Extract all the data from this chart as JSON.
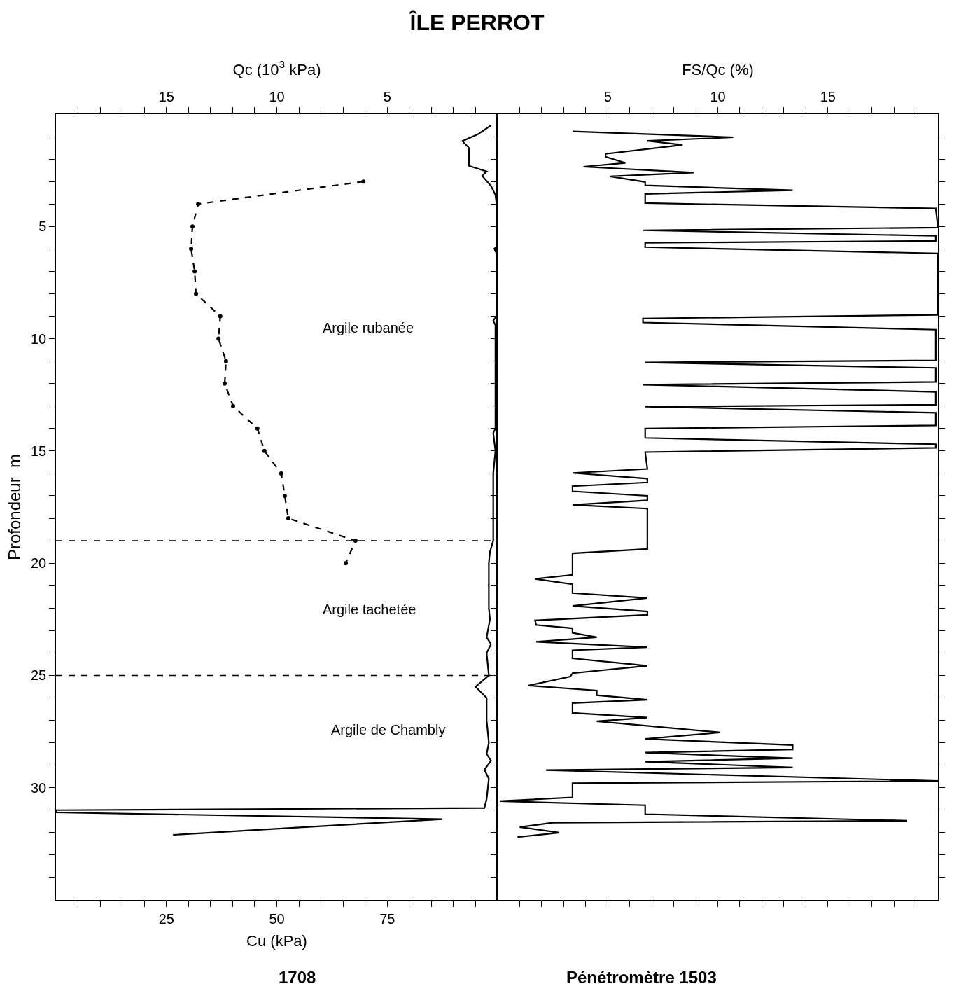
{
  "chart_data": [
    {
      "type": "line",
      "title": "ÎLE PERROT",
      "xlabel": "Cu (kPa)",
      "x2label": "Qc (10$^{3}$ kPa)",
      "ylabel": "Profondeur  m",
      "xlim": [
        0,
        100
      ],
      "xticks": [
        {
          "value": 5,
          "label": null
        },
        {
          "value": 10,
          "label": null
        },
        {
          "value": 15,
          "label": null
        },
        {
          "value": 20,
          "label": null
        },
        25,
        {
          "value": 30,
          "label": null
        },
        {
          "value": 35,
          "label": null
        },
        {
          "value": 40,
          "label": null
        },
        {
          "value": 45,
          "label": null
        },
        50,
        {
          "value": 55,
          "label": null
        },
        {
          "value": 60,
          "label": null
        },
        {
          "value": 65,
          "label": null
        },
        {
          "value": 70,
          "label": null
        },
        75,
        {
          "value": 80,
          "label": null
        },
        {
          "value": 85,
          "label": null
        },
        {
          "value": 90,
          "label": null
        },
        {
          "value": 95,
          "label": null
        }
      ],
      "x2lim": [
        20,
        0
      ],
      "x2ticks": [
        {
          "value": 1,
          "label": null
        },
        {
          "value": 2,
          "label": null
        },
        {
          "value": 3,
          "label": null
        },
        {
          "value": 4,
          "label": null
        },
        5,
        {
          "value": 6,
          "label": null
        },
        {
          "value": 7,
          "label": null
        },
        {
          "value": 8,
          "label": null
        },
        {
          "value": 9,
          "label": null
        },
        10,
        {
          "value": 11,
          "label": null
        },
        {
          "value": 12,
          "label": null
        },
        {
          "value": 13,
          "label": null
        },
        {
          "value": 14,
          "label": null
        },
        15,
        {
          "value": 16,
          "label": null
        },
        {
          "value": 17,
          "label": null
        },
        {
          "value": 18,
          "label": null
        },
        {
          "value": 19,
          "label": null
        }
      ],
      "ylim": [
        35,
        0
      ],
      "yticks": [
        {
          "value": 1,
          "label": null
        },
        {
          "value": 2,
          "label": null
        },
        {
          "value": 3,
          "label": null
        },
        {
          "value": 4,
          "label": null
        },
        5,
        {
          "value": 6,
          "label": null
        },
        {
          "value": 7,
          "label": null
        },
        {
          "value": 8,
          "label": null
        },
        {
          "value": 9,
          "label": null
        },
        10,
        {
          "value": 11,
          "label": null
        },
        {
          "value": 12,
          "label": null
        },
        {
          "value": 13,
          "label": null
        },
        {
          "value": 14,
          "label": null
        },
        15,
        {
          "value": 16,
          "label": null
        },
        {
          "value": 17,
          "label": null
        },
        {
          "value": 18,
          "label": null
        },
        {
          "value": 19,
          "label": null
        },
        20,
        {
          "value": 21,
          "label": null
        },
        {
          "value": 22,
          "label": null
        },
        {
          "value": 23,
          "label": null
        },
        {
          "value": 24,
          "label": null
        },
        25,
        {
          "value": 26,
          "label": null
        },
        {
          "value": 27,
          "label": null
        },
        {
          "value": 28,
          "label": null
        },
        {
          "value": 29,
          "label": null
        },
        30,
        {
          "value": 31,
          "label": null
        },
        {
          "value": 32,
          "label": null
        },
        {
          "value": 33,
          "label": null
        },
        {
          "value": 34,
          "label": null
        }
      ],
      "series": [
        {
          "color": "#000000",
          "line_style": "dashed",
          "marker": "circle",
          "x": [
            69.6,
            32.2,
            30.9,
            30.6,
            31.4,
            31.7,
            37.2,
            36.8,
            38.5,
            38.2,
            40.1,
            45.6,
            47.2,
            51,
            51.8,
            52.6,
            67.8,
            65.6
          ],
          "values": [
            3,
            4,
            5,
            6,
            7,
            8,
            9,
            10,
            11,
            12,
            13,
            14,
            15,
            16,
            17,
            18,
            19,
            20
          ]
        },
        {
          "color": "#000000",
          "axis": "x2",
          "line_style": "solid",
          "x": [
            0.3,
            0.9,
            1.6,
            1.3,
            1.3,
            0.5,
            0.7,
            0.3,
            0.1,
            0.05,
            0.05,
            0.15,
            0.05,
            0.05,
            0.2,
            0.1,
            0.1,
            0.2,
            0.15,
            0.1,
            0.2,
            0.2,
            0.2,
            0.35,
            0.4,
            0.4,
            0.35,
            0.5,
            0.3,
            0.5,
            0.4,
            1.0,
            0.5,
            0.5,
            0.4,
            0.5,
            0.3,
            0.6,
            0.4,
            0.5,
            0.6,
            20,
            20,
            2.5,
            8.7,
            14.7
          ],
          "values": [
            0.5,
            0.9,
            1.2,
            1.5,
            2.3,
            2.55,
            2.75,
            3.2,
            3.6,
            4.0,
            5.9,
            6.0,
            6.2,
            9.0,
            9.2,
            9.4,
            14.0,
            14.2,
            14.6,
            15,
            16,
            17,
            19,
            19.5,
            20,
            22,
            22.5,
            23.3,
            23.6,
            24,
            25,
            25.5,
            26,
            27,
            28,
            28.5,
            28.8,
            29.2,
            29.6,
            30.5,
            30.9,
            31.0,
            31.1,
            31.4,
            31.75,
            32.1
          ]
        }
      ],
      "ref_lines": [
        {
          "axis": "y",
          "value": 19,
          "line_style": "dashed"
        },
        {
          "axis": "y",
          "value": 25,
          "line_style": "dashed"
        }
      ],
      "annotations": [
        "Argile rubanée",
        "Argile tachetée",
        "Argile de Chambly",
        "1708"
      ]
    },
    {
      "type": "line",
      "xlabel": "FS/Qc (%)",
      "tick_labels": "x",
      "xlim": [
        0,
        20
      ],
      "xticks": [
        {
          "value": 1,
          "label": null
        },
        {
          "value": 2,
          "label": null
        },
        {
          "value": 3,
          "label": null
        },
        {
          "value": 4,
          "label": null
        },
        5,
        {
          "value": 6,
          "label": null
        },
        {
          "value": 7,
          "label": null
        },
        {
          "value": 8,
          "label": null
        },
        {
          "value": 9,
          "label": null
        },
        10,
        {
          "value": 11,
          "label": null
        },
        {
          "value": 12,
          "label": null
        },
        {
          "value": 13,
          "label": null
        },
        {
          "value": 14,
          "label": null
        },
        15,
        {
          "value": 16,
          "label": null
        },
        {
          "value": 17,
          "label": null
        },
        {
          "value": 18,
          "label": null
        },
        {
          "value": 19,
          "label": null
        }
      ],
      "ylim": [
        35,
        0
      ],
      "yticks": [
        {
          "value": 1,
          "label": null
        },
        {
          "value": 2,
          "label": null
        },
        {
          "value": 3,
          "label": null
        },
        {
          "value": 4,
          "label": null
        },
        5,
        {
          "value": 6,
          "label": null
        },
        {
          "value": 7,
          "label": null
        },
        {
          "value": 8,
          "label": null
        },
        {
          "value": 9,
          "label": null
        },
        10,
        {
          "value": 11,
          "label": null
        },
        {
          "value": 12,
          "label": null
        },
        {
          "value": 13,
          "label": null
        },
        {
          "value": 14,
          "label": null
        },
        15,
        {
          "value": 16,
          "label": null
        },
        {
          "value": 17,
          "label": null
        },
        {
          "value": 18,
          "label": null
        },
        {
          "value": 19,
          "label": null
        },
        20,
        {
          "value": 21,
          "label": null
        },
        {
          "value": 22,
          "label": null
        },
        {
          "value": 23,
          "label": null
        },
        {
          "value": 24,
          "label": null
        },
        25,
        {
          "value": 26,
          "label": null
        },
        {
          "value": 27,
          "label": null
        },
        {
          "value": 28,
          "label": null
        },
        {
          "value": 29,
          "label": null
        },
        30,
        {
          "value": 31,
          "label": null
        },
        {
          "value": 32,
          "label": null
        },
        {
          "value": 33,
          "label": null
        },
        {
          "value": 34,
          "label": null
        }
      ],
      "series": [
        {
          "color": "#000000",
          "line_style": "solid",
          "x": [
            3.4,
            10.7,
            6.8,
            8.4,
            4.9,
            4.9,
            5.8,
            3.9,
            8.9,
            5.1,
            6.7,
            6.7,
            13.4,
            6.7,
            6.7,
            19.9,
            20,
            6.6,
            19.9,
            19.9,
            6.7,
            6.7,
            20,
            20,
            6.6,
            6.6,
            19.9,
            19.9,
            6.7,
            19.9,
            19.9,
            6.6,
            19.9,
            19.9,
            6.7,
            19.9,
            19.9,
            6.7,
            6.7,
            19.9,
            19.9,
            6.7,
            6.8,
            3.4,
            6.8,
            6.8,
            3.4,
            3.4,
            6.8,
            6.8,
            3.4,
            6.8,
            6.8,
            3.4,
            3.4,
            1.7,
            3.4,
            3.4,
            6.8,
            3.4,
            6.8,
            6.8,
            1.7,
            1.75,
            3.4,
            3.4,
            4.5,
            1.75,
            6.8,
            3.4,
            3.4,
            6.8,
            3.4,
            3.3,
            1.4,
            4.5,
            4.5,
            6.8,
            3.4,
            3.4,
            6.8,
            4.5,
            10.1,
            6.7,
            13.4,
            13.4,
            6.7,
            13.4,
            6.7,
            13.4,
            2.2,
            20,
            3.4,
            3.4,
            0.1,
            6.7,
            6.7,
            18.6,
            2.5,
            1.0,
            2.8,
            0.9
          ],
          "values": [
            0.77,
            1.03,
            1.19,
            1.37,
            1.77,
            1.9,
            2.17,
            2.34,
            2.6,
            2.77,
            3.02,
            3.17,
            3.39,
            3.55,
            3.96,
            4.2,
            5.05,
            5.17,
            5.42,
            5.64,
            5.73,
            5.92,
            6.2,
            8.94,
            9.1,
            9.28,
            9.6,
            10.97,
            11.06,
            11.3,
            11.93,
            12.05,
            12.37,
            12.94,
            13.03,
            13.3,
            13.86,
            14.0,
            14.42,
            14.7,
            14.86,
            15.05,
            15.8,
            15.98,
            16.23,
            16.4,
            16.57,
            16.8,
            17.0,
            17.2,
            17.4,
            17.57,
            19.37,
            19.56,
            20.52,
            20.7,
            20.94,
            21.33,
            21.55,
            21.9,
            22.15,
            22.3,
            22.55,
            22.75,
            22.9,
            23.1,
            23.3,
            23.5,
            23.74,
            23.88,
            24.24,
            24.57,
            24.9,
            25.05,
            25.45,
            25.67,
            25.88,
            26.08,
            26.23,
            26.67,
            26.88,
            27.04,
            27.54,
            27.83,
            28.1,
            28.3,
            28.44,
            28.69,
            28.84,
            29.1,
            29.22,
            29.7,
            29.8,
            30.43,
            30.6,
            30.78,
            31.18,
            31.47,
            31.56,
            31.75,
            32.0,
            32.2
          ]
        }
      ],
      "annotations": [
        "Pénétromètre 1503"
      ]
    }
  ]
}
